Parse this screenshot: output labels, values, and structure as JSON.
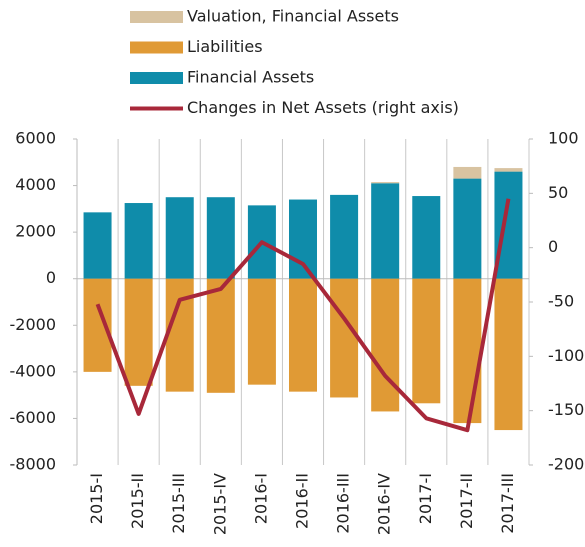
{
  "chart_data": {
    "type": "bar",
    "categories": [
      "2015-I",
      "2015-II",
      "2015-III",
      "2015-IV",
      "2016-I",
      "2016-II",
      "2016-III",
      "2016-IV",
      "2017-I",
      "2017-II",
      "2017-III"
    ],
    "series": [
      {
        "name": "Valuation, Financial Assets",
        "color": "#d8c3a1",
        "stack": "pos",
        "values": [
          0,
          0,
          0,
          0,
          0,
          0,
          0,
          50,
          0,
          500,
          150
        ]
      },
      {
        "name": "Liabilities",
        "color": "#e09a35",
        "stack": "neg",
        "values": [
          -4000,
          -4600,
          -4850,
          -4900,
          -4550,
          -4850,
          -5100,
          -5700,
          -5350,
          -6200,
          -6500
        ]
      },
      {
        "name": "Financial Assets",
        "color": "#0f8caa",
        "stack": "pos",
        "values": [
          2850,
          3250,
          3500,
          3500,
          3150,
          3400,
          3600,
          4100,
          3550,
          4300,
          4600
        ]
      },
      {
        "name": "Changes in Net Assets (right axis)",
        "color": "#a8283a",
        "type": "line",
        "axis": "y2",
        "values": [
          -52,
          -153,
          -48,
          -38,
          5,
          -15,
          -65,
          -118,
          -157,
          -168,
          45
        ]
      }
    ],
    "ylim": [
      -8000,
      6000
    ],
    "yticks": [
      -8000,
      -6000,
      -4000,
      -2000,
      0,
      2000,
      4000,
      6000
    ],
    "y2lim": [
      -200,
      100
    ],
    "y2ticks": [
      -200,
      -150,
      -100,
      -50,
      0,
      50,
      100
    ]
  }
}
